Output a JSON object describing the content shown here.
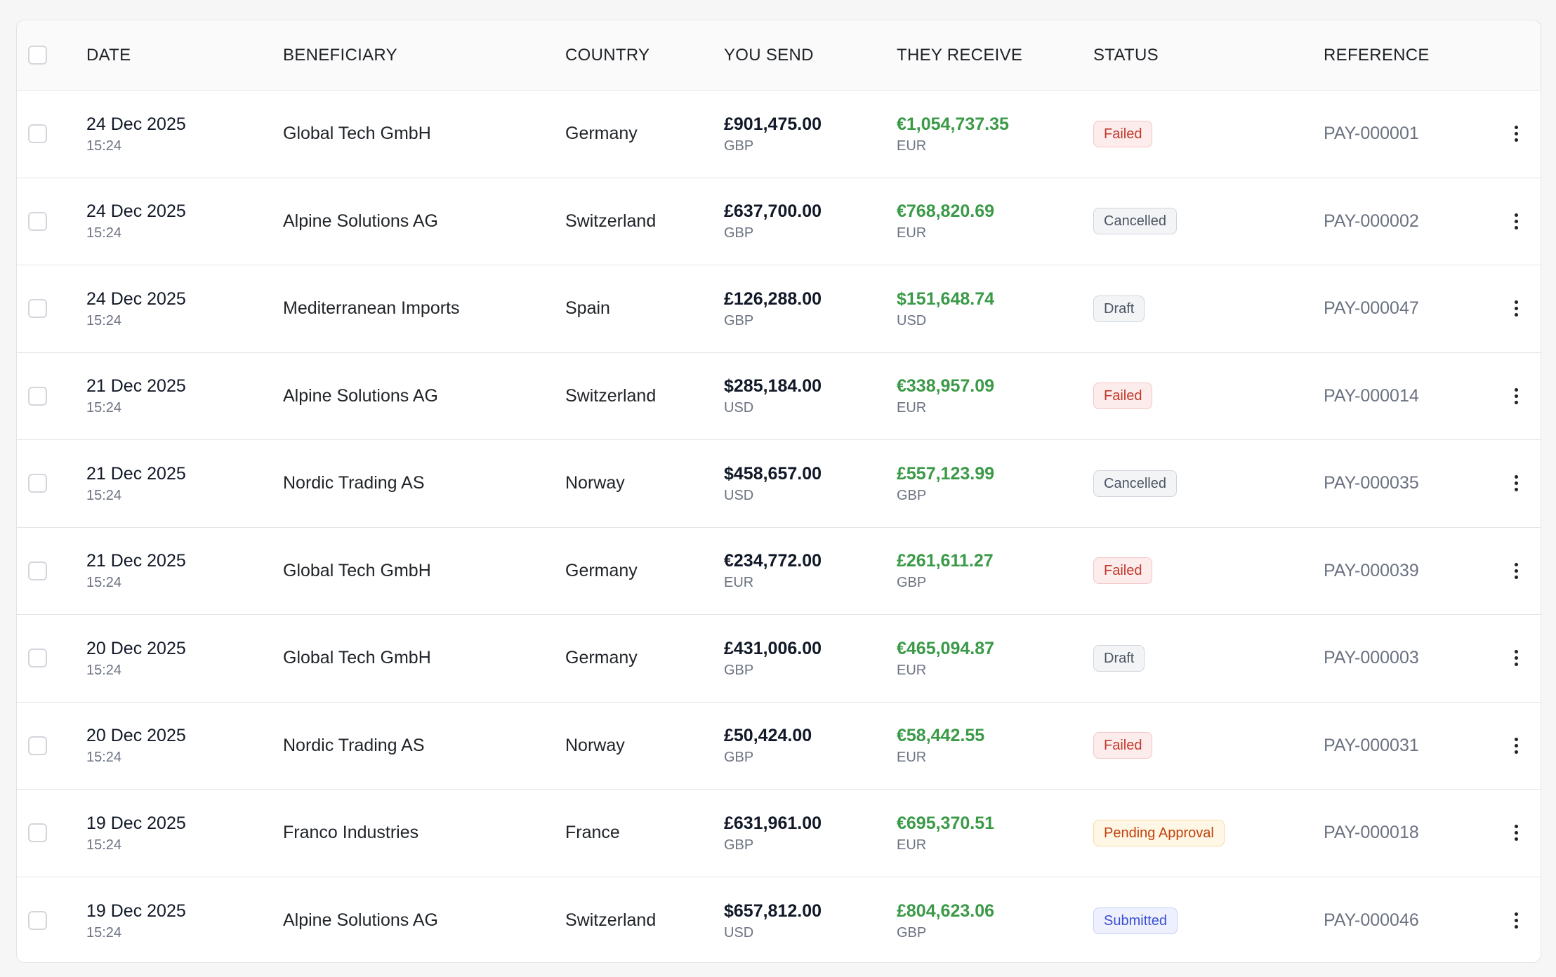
{
  "columns": {
    "date": "DATE",
    "beneficiary": "BENEFICIARY",
    "country": "COUNTRY",
    "you_send": "YOU SEND",
    "they_receive": "THEY RECEIVE",
    "status": "STATUS",
    "reference": "REFERENCE"
  },
  "status_colors": {
    "Failed": {
      "text": "#c0392b",
      "bg": "#fdecec",
      "border": "#f5c6c6"
    },
    "Cancelled": {
      "text": "#4b5563",
      "bg": "#f3f4f6",
      "border": "#d1d5db"
    },
    "Draft": {
      "text": "#4b5563",
      "bg": "#f3f4f6",
      "border": "#d1d5db"
    },
    "Pending Approval": {
      "text": "#c2410c",
      "bg": "#fff7e6",
      "border": "#f8d9a0"
    },
    "Submitted": {
      "text": "#3b4fd1",
      "bg": "#eef1fd",
      "border": "#c5cdf5"
    }
  },
  "rows": [
    {
      "date": "24 Dec 2025",
      "time": "15:24",
      "beneficiary": "Global Tech GmbH",
      "country": "Germany",
      "send_amount": "£901,475.00",
      "send_currency": "GBP",
      "receive_amount": "€1,054,737.35",
      "receive_currency": "EUR",
      "status": "Failed",
      "reference": "PAY-000001"
    },
    {
      "date": "24 Dec 2025",
      "time": "15:24",
      "beneficiary": "Alpine Solutions AG",
      "country": "Switzerland",
      "send_amount": "£637,700.00",
      "send_currency": "GBP",
      "receive_amount": "€768,820.69",
      "receive_currency": "EUR",
      "status": "Cancelled",
      "reference": "PAY-000002"
    },
    {
      "date": "24 Dec 2025",
      "time": "15:24",
      "beneficiary": "Mediterranean Imports",
      "country": "Spain",
      "send_amount": "£126,288.00",
      "send_currency": "GBP",
      "receive_amount": "$151,648.74",
      "receive_currency": "USD",
      "status": "Draft",
      "reference": "PAY-000047"
    },
    {
      "date": "21 Dec 2025",
      "time": "15:24",
      "beneficiary": "Alpine Solutions AG",
      "country": "Switzerland",
      "send_amount": "$285,184.00",
      "send_currency": "USD",
      "receive_amount": "€338,957.09",
      "receive_currency": "EUR",
      "status": "Failed",
      "reference": "PAY-000014"
    },
    {
      "date": "21 Dec 2025",
      "time": "15:24",
      "beneficiary": "Nordic Trading AS",
      "country": "Norway",
      "send_amount": "$458,657.00",
      "send_currency": "USD",
      "receive_amount": "£557,123.99",
      "receive_currency": "GBP",
      "status": "Cancelled",
      "reference": "PAY-000035"
    },
    {
      "date": "21 Dec 2025",
      "time": "15:24",
      "beneficiary": "Global Tech GmbH",
      "country": "Germany",
      "send_amount": "€234,772.00",
      "send_currency": "EUR",
      "receive_amount": "£261,611.27",
      "receive_currency": "GBP",
      "status": "Failed",
      "reference": "PAY-000039"
    },
    {
      "date": "20 Dec 2025",
      "time": "15:24",
      "beneficiary": "Global Tech GmbH",
      "country": "Germany",
      "send_amount": "£431,006.00",
      "send_currency": "GBP",
      "receive_amount": "€465,094.87",
      "receive_currency": "EUR",
      "status": "Draft",
      "reference": "PAY-000003"
    },
    {
      "date": "20 Dec 2025",
      "time": "15:24",
      "beneficiary": "Nordic Trading AS",
      "country": "Norway",
      "send_amount": "£50,424.00",
      "send_currency": "GBP",
      "receive_amount": "€58,442.55",
      "receive_currency": "EUR",
      "status": "Failed",
      "reference": "PAY-000031"
    },
    {
      "date": "19 Dec 2025",
      "time": "15:24",
      "beneficiary": "Franco Industries",
      "country": "France",
      "send_amount": "£631,961.00",
      "send_currency": "GBP",
      "receive_amount": "€695,370.51",
      "receive_currency": "EUR",
      "status": "Pending Approval",
      "reference": "PAY-000018"
    },
    {
      "date": "19 Dec 2025",
      "time": "15:24",
      "beneficiary": "Alpine Solutions AG",
      "country": "Switzerland",
      "send_amount": "$657,812.00",
      "send_currency": "USD",
      "receive_amount": "£804,623.06",
      "receive_currency": "GBP",
      "status": "Submitted",
      "reference": "PAY-000046"
    }
  ]
}
